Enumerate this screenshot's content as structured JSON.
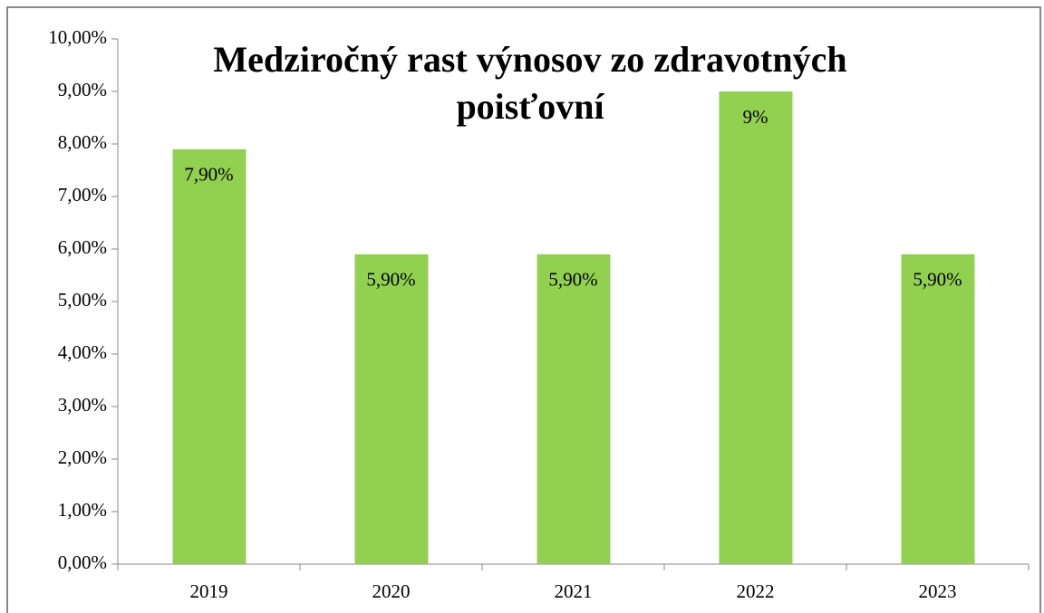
{
  "chart_data": {
    "type": "bar",
    "title": "Medziročný rast výnosov zo zdravotných poisťovní",
    "categories": [
      "2019",
      "2020",
      "2021",
      "2022",
      "2023"
    ],
    "values": [
      7.9,
      5.9,
      5.9,
      9,
      5.9
    ],
    "value_labels": [
      "7,90%",
      "5,90%",
      "5,90%",
      "9%",
      "5,90%"
    ],
    "color": "#92d050",
    "ylim": [
      0,
      10
    ],
    "yticks": [
      {
        "value": 0,
        "label": "0,00%"
      },
      {
        "value": 1,
        "label": "1,00%"
      },
      {
        "value": 2,
        "label": "2,00%"
      },
      {
        "value": 3,
        "label": "3,00%"
      },
      {
        "value": 4,
        "label": "4,00%"
      },
      {
        "value": 5,
        "label": "5,00%"
      },
      {
        "value": 6,
        "label": "6,00%"
      },
      {
        "value": 7,
        "label": "7,00%"
      },
      {
        "value": 8,
        "label": "8,00%"
      },
      {
        "value": 9,
        "label": "9,00%"
      },
      {
        "value": 10,
        "label": "10,00%"
      }
    ],
    "grid": false
  }
}
